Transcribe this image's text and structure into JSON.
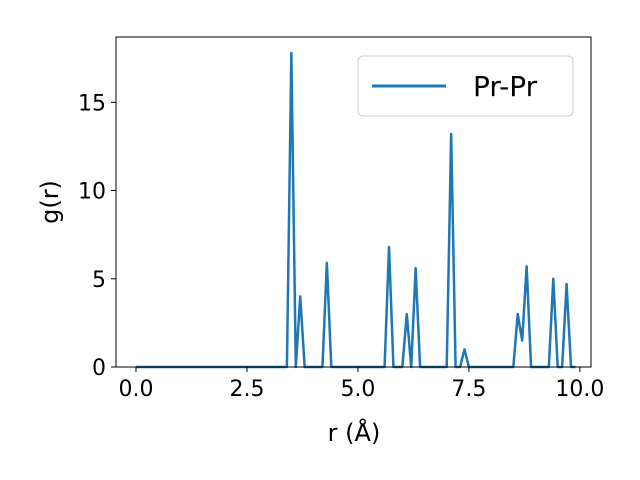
{
  "chart_data": {
    "type": "line",
    "xlabel": "r (Å)",
    "ylabel": "g(r)",
    "xlim": [
      -0.45,
      10.25
    ],
    "ylim": [
      0,
      18.7
    ],
    "xticks": [
      0.0,
      2.5,
      5.0,
      7.5,
      10.0
    ],
    "xtick_labels": [
      "0.0",
      "2.5",
      "5.0",
      "7.5",
      "10.0"
    ],
    "yticks": [
      0,
      5,
      10,
      15
    ],
    "ytick_labels": [
      "0",
      "5",
      "10",
      "15"
    ],
    "grid": false,
    "legend_position": "top-right",
    "series": [
      {
        "name": "Pr-Pr",
        "color": "#1f77b4",
        "x": [
          0.0,
          3.4,
          3.5,
          3.6,
          3.7,
          3.8,
          4.2,
          4.3,
          4.4,
          5.6,
          5.7,
          5.8,
          6.0,
          6.1,
          6.2,
          6.3,
          6.4,
          7.0,
          7.1,
          7.2,
          7.3,
          7.4,
          7.5,
          8.5,
          8.6,
          8.7,
          8.8,
          8.9,
          9.3,
          9.4,
          9.5,
          9.6,
          9.7,
          9.8,
          9.9
        ],
        "y": [
          0.0,
          0.0,
          17.8,
          0.0,
          4.0,
          0.0,
          0.0,
          5.9,
          0.0,
          0.0,
          6.8,
          0.0,
          0.0,
          3.0,
          0.0,
          5.6,
          0.0,
          0.0,
          13.2,
          0.0,
          0.0,
          1.0,
          0.0,
          0.0,
          3.0,
          1.5,
          5.7,
          0.0,
          0.0,
          5.0,
          0.0,
          0.0,
          4.7,
          0.0,
          0.0
        ]
      }
    ]
  }
}
